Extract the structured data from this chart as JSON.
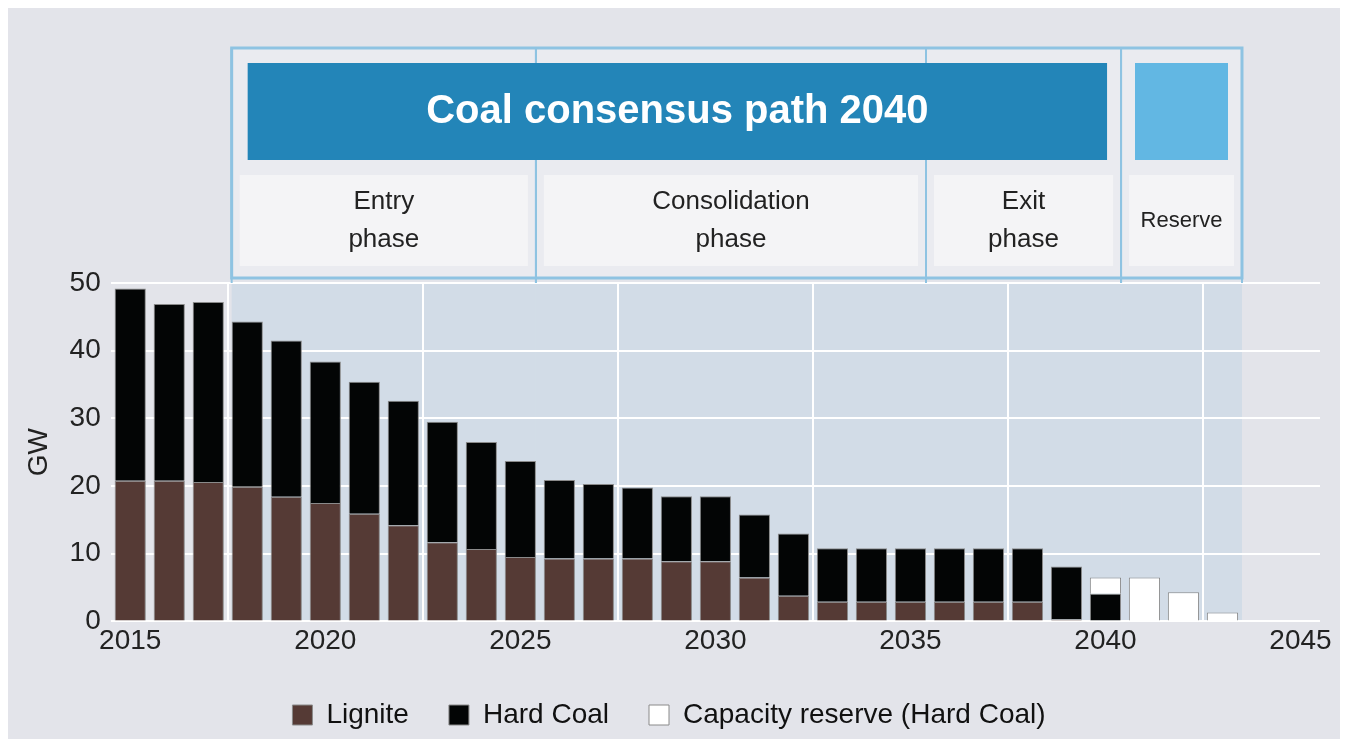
{
  "chart_data": {
    "type": "bar",
    "title": "Coal consensus path 2040",
    "ylabel": "GW",
    "stacked": true,
    "x": [
      2015,
      2016,
      2017,
      2018,
      2019,
      2020,
      2021,
      2022,
      2023,
      2024,
      2025,
      2026,
      2027,
      2028,
      2029,
      2030,
      2031,
      2032,
      2033,
      2034,
      2035,
      2036,
      2037,
      2038,
      2039,
      2040,
      2041,
      2042,
      2043
    ],
    "series": [
      {
        "name": "Lignite",
        "color": "#553a35",
        "values": [
          20.8,
          20.8,
          20.6,
          19.9,
          18.4,
          17.5,
          15.9,
          14.2,
          11.7,
          10.7,
          9.5,
          9.3,
          9.3,
          9.3,
          8.9,
          8.9,
          6.5,
          3.8,
          2.9,
          2.9,
          2.9,
          2.9,
          2.9,
          2.9,
          0.3,
          null,
          null,
          null,
          null
        ]
      },
      {
        "name": "Hard Coal",
        "color": "#030505",
        "values": [
          28.4,
          26.1,
          26.6,
          24.4,
          23.1,
          20.9,
          19.5,
          18.4,
          17.8,
          15.8,
          14.2,
          11.6,
          11.0,
          10.5,
          9.6,
          9.6,
          9.3,
          9.2,
          7.9,
          7.9,
          7.9,
          7.9,
          7.9,
          7.9,
          7.8,
          4.1,
          null,
          null,
          null
        ]
      },
      {
        "name": "Capacity reserve (Hard Coal)",
        "color": "#ffffff",
        "values": [
          null,
          null,
          null,
          null,
          null,
          null,
          null,
          null,
          null,
          null,
          null,
          null,
          null,
          null,
          null,
          null,
          null,
          null,
          null,
          null,
          null,
          null,
          null,
          null,
          null,
          2.4,
          6.5,
          4.3,
          1.3
        ]
      }
    ],
    "xlim": [
      2014.5,
      2045.5
    ],
    "xticks": [
      2015,
      2020,
      2025,
      2030,
      2035,
      2040,
      2045
    ],
    "ylim": [
      0,
      50
    ],
    "yticks": [
      0,
      10,
      20,
      30,
      40,
      50
    ],
    "bands": [
      {
        "axis": "x",
        "from": 2017.6,
        "to": 2025.4,
        "label": "Entry phase",
        "color": "#d2dce7"
      },
      {
        "axis": "x",
        "from": 2025.4,
        "to": 2035.4,
        "label": "Consolidation phase",
        "color": "#d2dce7"
      },
      {
        "axis": "x",
        "from": 2035.4,
        "to": 2040.4,
        "label": "Exit phase",
        "color": "#d2dce7"
      },
      {
        "axis": "x",
        "from": 2040.4,
        "to": 2043.5,
        "label": "Reserve",
        "color": "#d2dce7"
      }
    ],
    "grid": true,
    "legend": "bottom"
  }
}
